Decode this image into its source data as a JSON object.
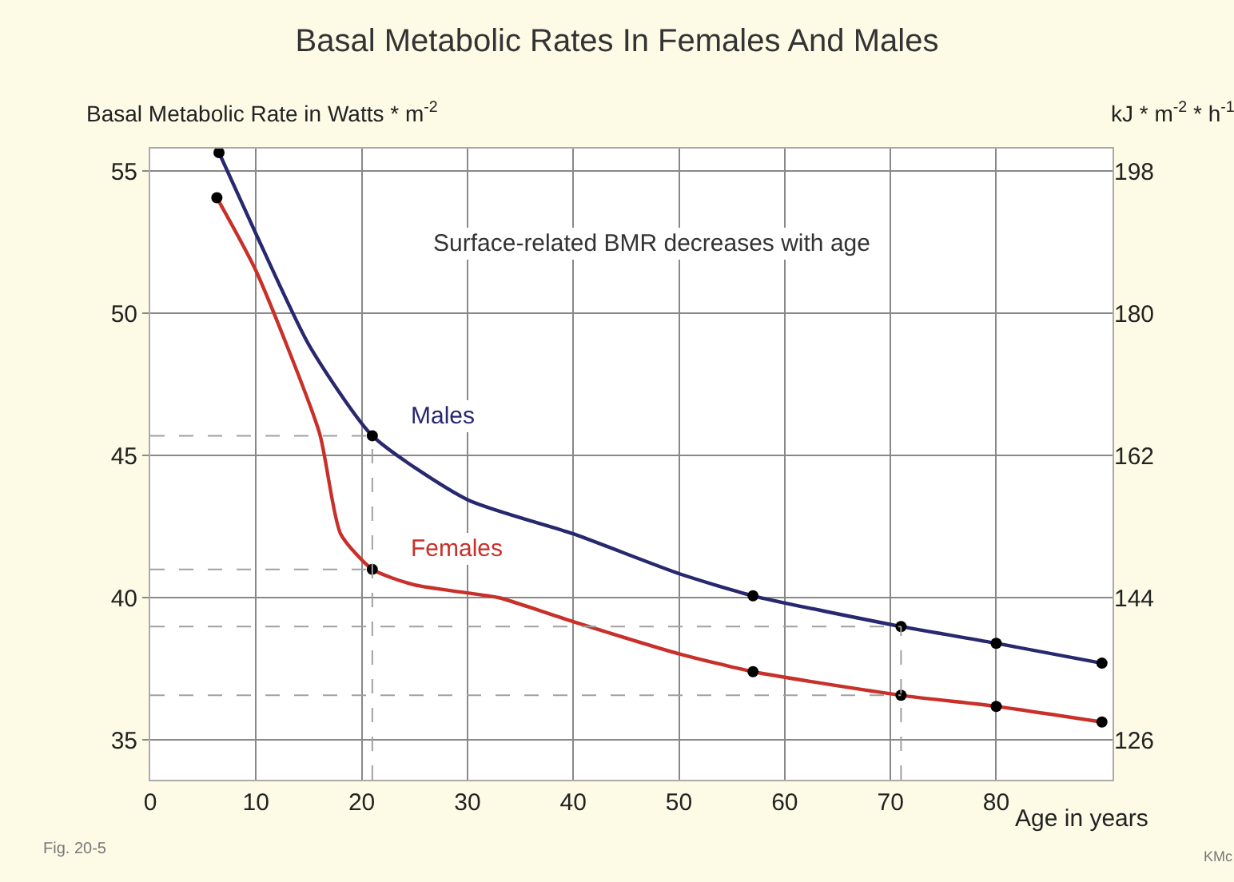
{
  "chart_data": {
    "type": "line",
    "title": "Basal Metabolic Rates In Females And Males",
    "ylabel": "Basal Metabolic Rate in Watts * m$^{-2}$",
    "y2label": "kJ * m$^{-2}$ * h$^{-1}$",
    "xlabel": "Age in years",
    "xlim": [
      0,
      91
    ],
    "xticks": [
      0,
      10,
      20,
      30,
      40,
      50,
      60,
      70,
      80
    ],
    "ylim": [
      33.6,
      55.8
    ],
    "yticks": [
      35,
      40,
      45,
      50,
      55
    ],
    "y2lim": [
      120.96,
      200.88
    ],
    "y2ticks": [
      126,
      144,
      162,
      180,
      198
    ],
    "grid": true,
    "legend": false,
    "line_style": "solid",
    "marker": "none",
    "series": [
      {
        "name": "Males",
        "color": "#27286e",
        "x": [
          6.5,
          10,
          15,
          21,
          30,
          40,
          50,
          57,
          71,
          80,
          90
        ],
        "values": [
          55.66,
          52.8,
          48.9,
          45.7,
          43.45,
          42.25,
          40.85,
          40.07,
          38.99,
          38.4,
          37.7
        ]
      },
      {
        "name": "Females",
        "color": "#c8302a",
        "x": [
          6.3,
          10,
          16,
          18,
          21,
          25,
          30,
          33,
          40,
          50,
          57,
          71,
          80,
          90
        ],
        "values": [
          54.07,
          51.5,
          45.8,
          42.25,
          41.0,
          40.45,
          40.17,
          40.0,
          39.16,
          38.03,
          37.4,
          36.57,
          36.18,
          35.63
        ]
      },
      {
        "type": "scatter",
        "marker": "circle",
        "color": "#000000",
        "x": [
          6.5,
          21,
          57,
          71,
          80,
          90
        ],
        "values": [
          55.66,
          45.7,
          40.07,
          38.99,
          38.4,
          37.7
        ]
      },
      {
        "type": "scatter",
        "marker": "circle",
        "color": "#000000",
        "x": [
          6.3,
          21,
          57,
          71,
          80,
          90
        ],
        "values": [
          54.07,
          41.0,
          37.4,
          36.57,
          36.18,
          35.63
        ]
      },
      {
        "type": "line",
        "line_style": "dashed",
        "color": "#a0a0a0",
        "x": [
          0,
          21
        ],
        "values": [
          45.7,
          45.7
        ]
      },
      {
        "type": "line",
        "line_style": "dashed",
        "color": "#a0a0a0",
        "x": [
          0,
          21
        ],
        "values": [
          41.0,
          41.0
        ]
      },
      {
        "type": "line",
        "line_style": "dashed",
        "color": "#a0a0a0",
        "x": [
          0,
          71
        ],
        "values": [
          38.99,
          38.99
        ]
      },
      {
        "type": "line",
        "line_style": "dashed",
        "color": "#a0a0a0",
        "x": [
          0,
          71
        ],
        "values": [
          36.57,
          36.57
        ]
      },
      {
        "type": "line",
        "line_style": "dashed",
        "color": "#a0a0a0",
        "x": [
          21,
          21
        ],
        "values": [
          33.6,
          45.7
        ]
      },
      {
        "type": "line",
        "line_style": "dashed",
        "color": "#a0a0a0",
        "x": [
          71,
          71
        ],
        "values": [
          33.6,
          38.99
        ]
      }
    ],
    "annotations": [
      "Surface-related BMR decreases with age",
      "Fig. 20-5",
      "KMc"
    ]
  }
}
